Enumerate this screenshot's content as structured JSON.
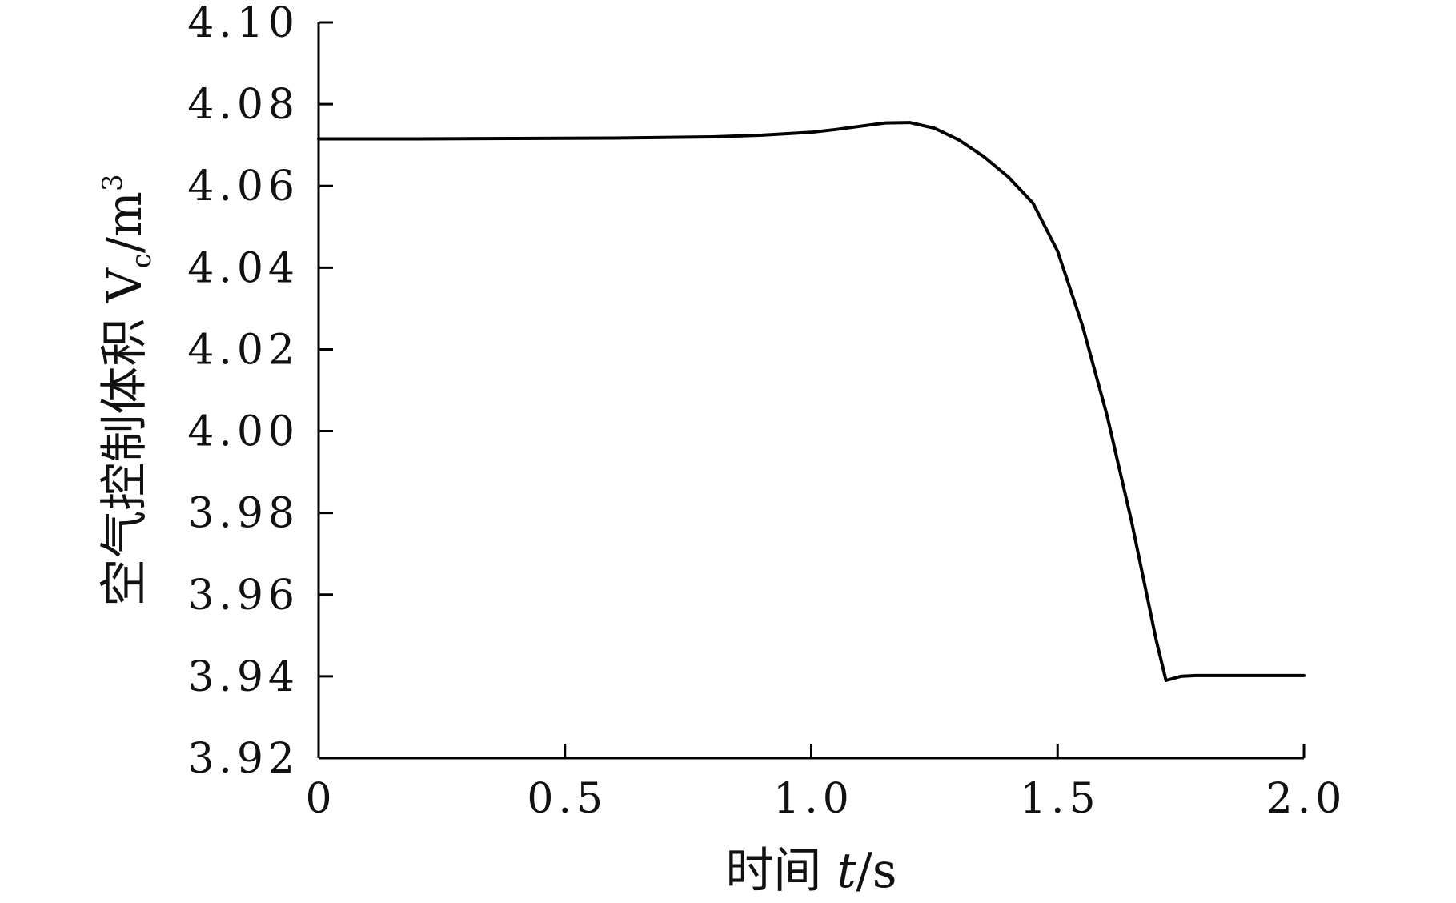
{
  "chart_data": {
    "type": "line",
    "title": "",
    "xlabel": {
      "prefix": "时间 ",
      "var": "t",
      "suffix": "/s"
    },
    "ylabel": {
      "prefix": "空气控制体积 V",
      "sub": "c",
      "mid": "/m",
      "sup": "3"
    },
    "xlim": [
      0,
      2.0
    ],
    "ylim": [
      3.92,
      4.1
    ],
    "xticks": [
      0,
      0.5,
      1.0,
      1.5,
      2.0
    ],
    "xtick_labels": [
      "0",
      "0.5",
      "1.0",
      "1.5",
      "2.0"
    ],
    "yticks": [
      3.92,
      3.94,
      3.96,
      3.98,
      4.0,
      4.02,
      4.04,
      4.06,
      4.08,
      4.1
    ],
    "ytick_labels": [
      "3.92",
      "3.94",
      "3.96",
      "3.98",
      "4.00",
      "4.02",
      "4.04",
      "4.06",
      "4.08",
      "4.10"
    ],
    "grid": false,
    "series": [
      {
        "color": "#000000",
        "x": [
          0,
          0.2,
          0.4,
          0.6,
          0.8,
          0.9,
          1.0,
          1.05,
          1.1,
          1.15,
          1.2,
          1.25,
          1.3,
          1.35,
          1.4,
          1.45,
          1.5,
          1.55,
          1.6,
          1.65,
          1.7,
          1.72,
          1.75,
          1.78,
          1.8,
          1.9,
          2.0
        ],
        "y": [
          4.0715,
          4.0715,
          4.0716,
          4.0717,
          4.072,
          4.0724,
          4.0731,
          4.0738,
          4.0746,
          4.0754,
          4.0755,
          4.0741,
          4.0712,
          4.0672,
          4.0622,
          4.0558,
          4.044,
          4.026,
          4.004,
          3.978,
          3.949,
          3.939,
          3.94,
          3.9402,
          3.9402,
          3.9402,
          3.9402
        ]
      }
    ]
  }
}
